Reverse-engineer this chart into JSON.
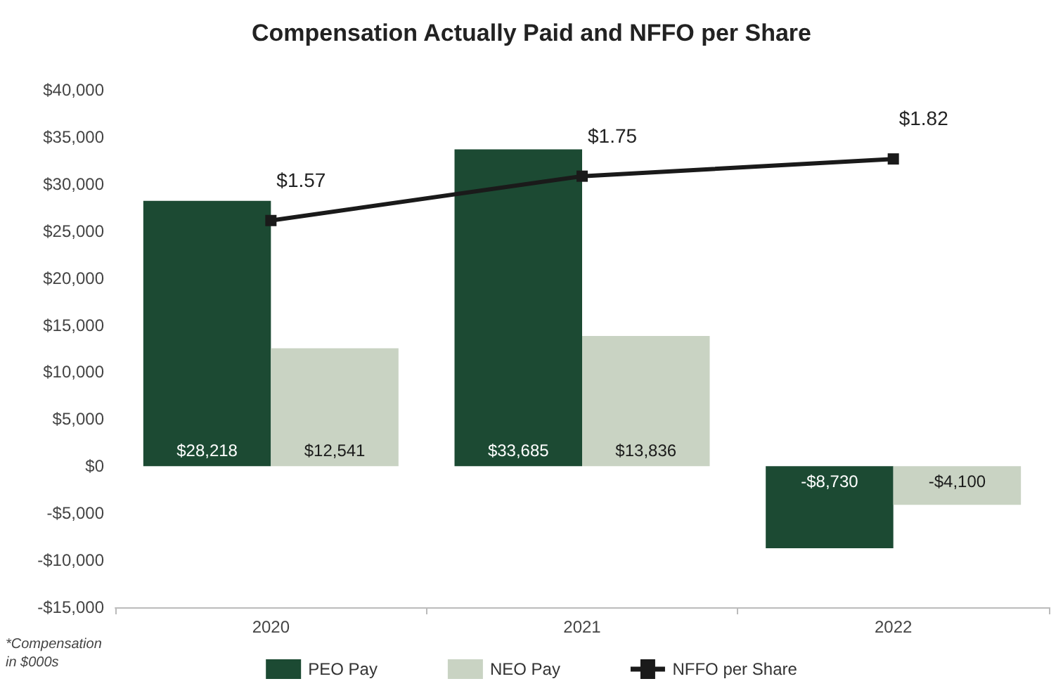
{
  "chart_data": {
    "type": "bar",
    "title": "Compensation Actually Paid and NFFO per Share",
    "categories": [
      "2020",
      "2021",
      "2022"
    ],
    "series": [
      {
        "name": "PEO Pay",
        "color": "#1c4a33",
        "values": [
          28218,
          33685,
          -8730
        ],
        "value_labels": [
          "$28,218",
          "$33,685",
          "-$8,730"
        ]
      },
      {
        "name": "NEO Pay",
        "color": "#c9d3c3",
        "values": [
          12541,
          13836,
          -4100
        ],
        "value_labels": [
          "$12,541",
          "$13,836",
          "-$4,100"
        ]
      },
      {
        "name": "NFFO per Share",
        "type": "line",
        "axis": "y2",
        "color": "#1a1a1a",
        "marker": "square",
        "values": [
          1.57,
          1.75,
          1.82
        ],
        "value_labels": [
          "$1.57",
          "$1.75",
          "$1.82"
        ]
      }
    ],
    "ylim": [
      -15000,
      40000
    ],
    "yticks": [
      {
        "value": -15000,
        "label": "-$15,000"
      },
      {
        "value": -10000,
        "label": "-$10,000"
      },
      {
        "value": -5000,
        "label": "-$5,000"
      },
      {
        "value": 0,
        "label": "$0"
      },
      {
        "value": 5000,
        "label": "$5,000"
      },
      {
        "value": 10000,
        "label": "$10,000"
      },
      {
        "value": 15000,
        "label": "$15,000"
      },
      {
        "value": 20000,
        "label": "$20,000"
      },
      {
        "value": 25000,
        "label": "$25,000"
      },
      {
        "value": 30000,
        "label": "$30,000"
      },
      {
        "value": 35000,
        "label": "$35,000"
      },
      {
        "value": 40000,
        "label": "$40,000"
      }
    ],
    "legend": "bottom",
    "annotations": [
      "*Compensation in $000s"
    ]
  }
}
